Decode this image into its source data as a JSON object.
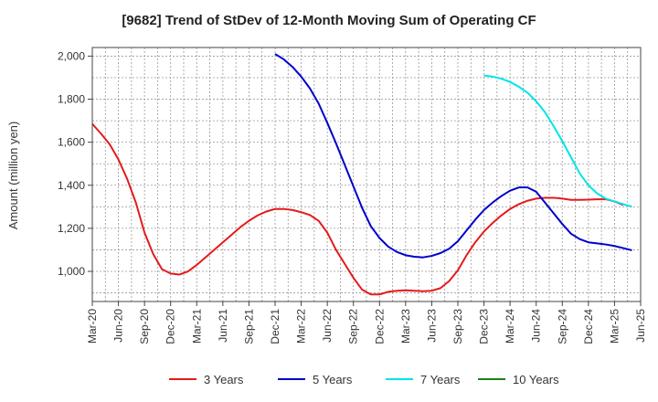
{
  "chart_data": {
    "type": "line",
    "title": "[9682]  Trend of StDev of 12-Month Moving Sum of Operating CF",
    "xlabel": "",
    "ylabel": "Amount (million yen)",
    "ylim": [
      860,
      2040
    ],
    "yticks": [
      1000,
      1200,
      1400,
      1600,
      1800,
      2000
    ],
    "ytick_labels": [
      "1,000",
      "1,200",
      "1,400",
      "1,600",
      "1,800",
      "2,000"
    ],
    "x_tick_labels": [
      "Mar-20",
      "Jun-20",
      "Sep-20",
      "Dec-20",
      "Mar-21",
      "Jun-21",
      "Sep-21",
      "Dec-21",
      "Mar-22",
      "Jun-22",
      "Sep-22",
      "Dec-22",
      "Mar-23",
      "Jun-23",
      "Sep-23",
      "Dec-23",
      "Mar-24",
      "Jun-24",
      "Sep-24",
      "Dec-24",
      "Mar-25",
      "Jun-25"
    ],
    "x_start_label": "Mar-20",
    "grid": true,
    "legend_position": "bottom",
    "series": [
      {
        "name": "3 Years",
        "color": "#e41a1c",
        "start_month_index": 0,
        "values": [
          1685,
          1640,
          1590,
          1520,
          1430,
          1320,
          1180,
          1080,
          1010,
          990,
          985,
          1000,
          1030,
          1065,
          1100,
          1135,
          1170,
          1205,
          1235,
          1260,
          1278,
          1290,
          1290,
          1285,
          1275,
          1262,
          1235,
          1180,
          1100,
          1035,
          970,
          915,
          893,
          893,
          905,
          910,
          912,
          910,
          908,
          910,
          922,
          955,
          1005,
          1075,
          1135,
          1185,
          1225,
          1260,
          1290,
          1312,
          1328,
          1338,
          1342,
          1342,
          1338,
          1332,
          1332,
          1333,
          1335,
          1335,
          1325,
          1308
        ]
      },
      {
        "name": "5 Years",
        "color": "#0000cc",
        "start_month_index": 21,
        "values": [
          2010,
          1985,
          1950,
          1905,
          1850,
          1780,
          1690,
          1595,
          1495,
          1395,
          1295,
          1210,
          1155,
          1115,
          1090,
          1075,
          1068,
          1065,
          1072,
          1085,
          1105,
          1140,
          1190,
          1240,
          1285,
          1320,
          1350,
          1375,
          1390,
          1390,
          1370,
          1320,
          1270,
          1220,
          1175,
          1150,
          1135,
          1130,
          1125,
          1118,
          1108,
          1098
        ]
      },
      {
        "name": "7 Years",
        "color": "#00e5e5",
        "start_month_index": 45,
        "values": [
          1910,
          1905,
          1895,
          1880,
          1858,
          1830,
          1790,
          1740,
          1675,
          1605,
          1530,
          1455,
          1400,
          1362,
          1338,
          1325,
          1312,
          1300
        ]
      },
      {
        "name": "10 Years",
        "color": "#1a7f1a",
        "start_month_index": 0,
        "values": []
      }
    ]
  }
}
